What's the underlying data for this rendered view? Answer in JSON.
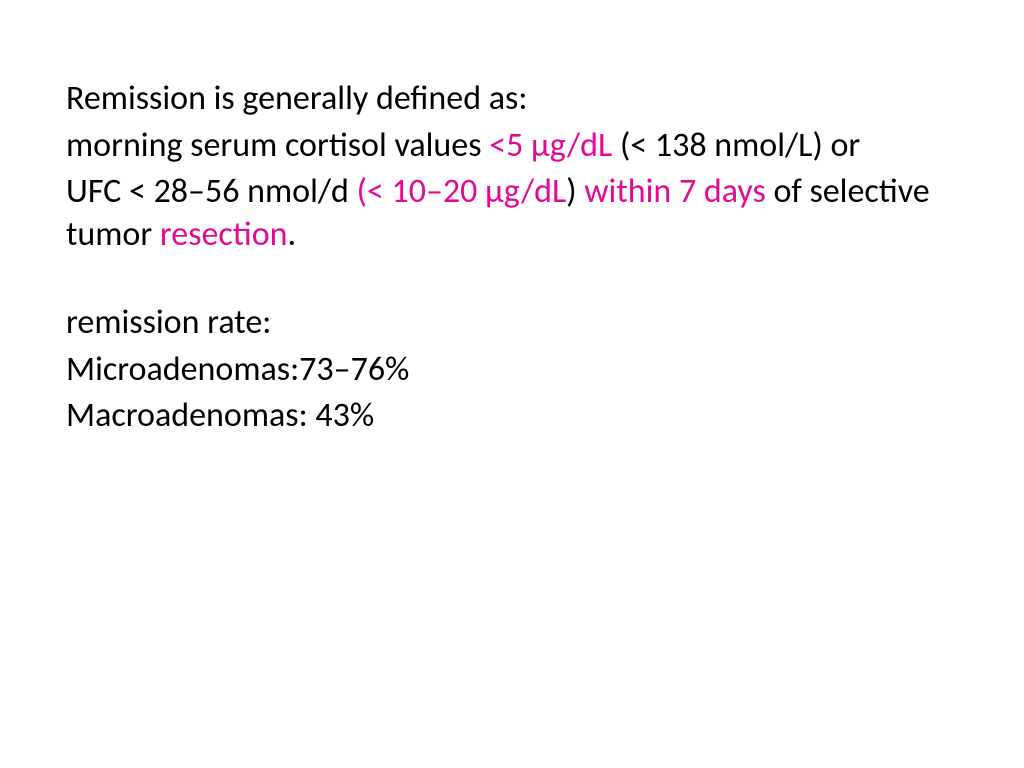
{
  "slide": {
    "background_color": "#ffffff",
    "text_color": "#000000",
    "highlight_color": "#e60895",
    "font_family": "Calibri",
    "font_size_pt": 26,
    "line1": "Remission is generally defined as:",
    "line2_a": "morning serum cortisol values ",
    "line2_hl": "<5 μg/dL ",
    "line2_b": "(< 138 nmol/L) or",
    "line3_a": "UFC < 28–56 nmol/d ",
    "line3_hl1": "(< 10–20 μg/dL",
    "line3_b": ") ",
    "line3_hl2": "within 7 days ",
    "line3_c": "of selective tumor ",
    "line3_hl3": "resection",
    "line3_d": ".",
    "line5": "remission rate:",
    "line6": "Microadenomas:73–76%",
    "line7": "Macroadenomas: 43%"
  }
}
